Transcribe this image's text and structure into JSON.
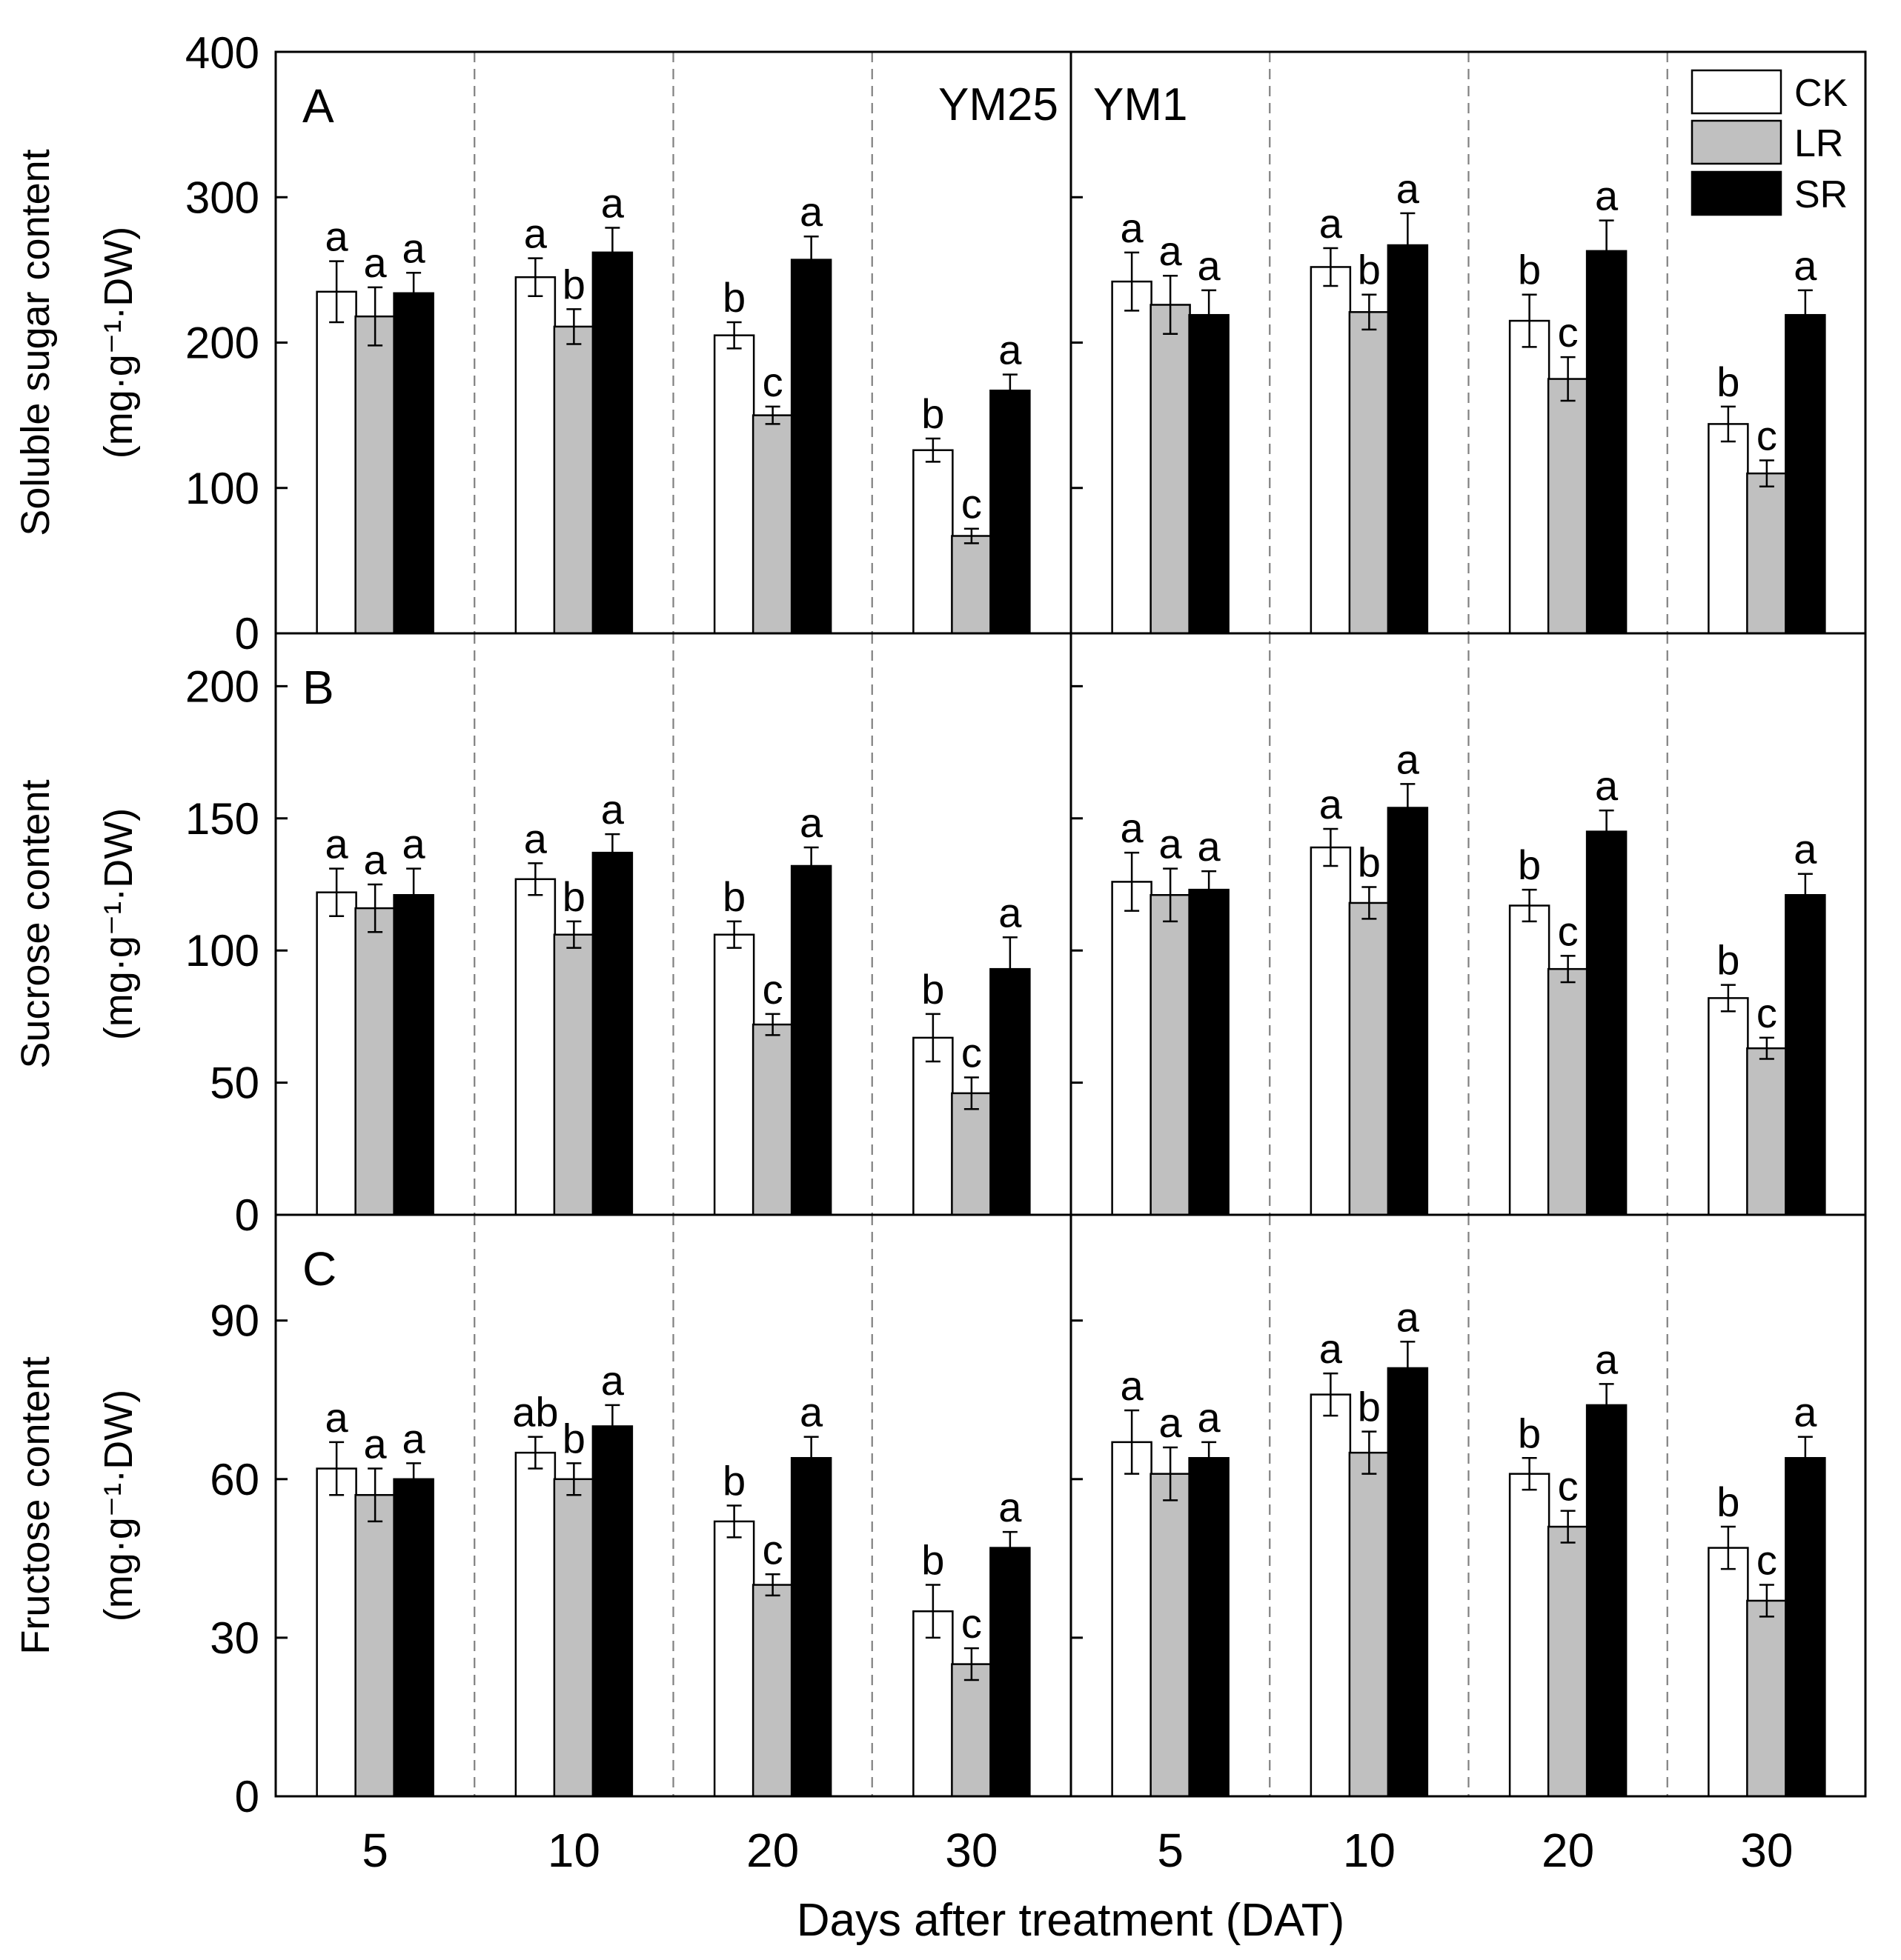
{
  "colors": {
    "CK": "#ffffff",
    "LR": "#c0c0c0",
    "SR": "#000000",
    "axis": "#000000",
    "divider": "#808080"
  },
  "chart_data": {
    "type": "bar",
    "x_label": "Days after treatment (DAT)",
    "categories": [
      "5",
      "10",
      "20",
      "30"
    ],
    "cultivars": [
      "YM25",
      "YM1"
    ],
    "legend": [
      "CK",
      "LR",
      "SR"
    ],
    "legend_position": "top-right",
    "error_bars": true,
    "panels": [
      {
        "letter": "A",
        "ylabel_line1": "Soluble sugar content",
        "ylabel_line2": "(mg·g⁻¹·DW)",
        "ylim": [
          0,
          400
        ],
        "yticks": [
          "0",
          "100",
          "200",
          "300",
          "400"
        ],
        "groups": [
          {
            "cultivar": "YM25",
            "dat": "5",
            "values": [
              235,
              218,
              234
            ],
            "errors": [
              21,
              20,
              14
            ],
            "letters": [
              "a",
              "a",
              "a"
            ]
          },
          {
            "cultivar": "YM25",
            "dat": "10",
            "values": [
              245,
              211,
              262
            ],
            "errors": [
              13,
              12,
              17
            ],
            "letters": [
              "a",
              "b",
              "a"
            ]
          },
          {
            "cultivar": "YM25",
            "dat": "20",
            "values": [
              205,
              150,
              257
            ],
            "errors": [
              9,
              6,
              16
            ],
            "letters": [
              "b",
              "c",
              "a"
            ]
          },
          {
            "cultivar": "YM25",
            "dat": "30",
            "values": [
              126,
              67,
              167
            ],
            "errors": [
              8,
              5,
              11
            ],
            "letters": [
              "b",
              "c",
              "a"
            ]
          },
          {
            "cultivar": "YM1",
            "dat": "5",
            "values": [
              242,
              226,
              219
            ],
            "errors": [
              20,
              20,
              17
            ],
            "letters": [
              "a",
              "a",
              "a"
            ]
          },
          {
            "cultivar": "YM1",
            "dat": "10",
            "values": [
              252,
              221,
              267
            ],
            "errors": [
              13,
              12,
              22
            ],
            "letters": [
              "a",
              "b",
              "a"
            ]
          },
          {
            "cultivar": "YM1",
            "dat": "20",
            "values": [
              215,
              175,
              263
            ],
            "errors": [
              18,
              15,
              21
            ],
            "letters": [
              "b",
              "c",
              "a"
            ]
          },
          {
            "cultivar": "YM1",
            "dat": "30",
            "values": [
              144,
              110,
              219
            ],
            "errors": [
              12,
              9,
              17
            ],
            "letters": [
              "b",
              "c",
              "a"
            ]
          }
        ]
      },
      {
        "letter": "B",
        "ylabel_line1": "Sucrose content",
        "ylabel_line2": "(mg·g⁻¹·DW)",
        "ylim": [
          0,
          220
        ],
        "yticks": [
          "0",
          "50",
          "100",
          "150",
          "200"
        ],
        "groups": [
          {
            "cultivar": "YM25",
            "dat": "5",
            "values": [
              122,
              116,
              121
            ],
            "errors": [
              9,
              9,
              10
            ],
            "letters": [
              "a",
              "a",
              "a"
            ]
          },
          {
            "cultivar": "YM25",
            "dat": "10",
            "values": [
              127,
              106,
              137
            ],
            "errors": [
              6,
              5,
              7
            ],
            "letters": [
              "a",
              "b",
              "a"
            ]
          },
          {
            "cultivar": "YM25",
            "dat": "20",
            "values": [
              106,
              72,
              132
            ],
            "errors": [
              5,
              4,
              7
            ],
            "letters": [
              "b",
              "c",
              "a"
            ]
          },
          {
            "cultivar": "YM25",
            "dat": "30",
            "values": [
              67,
              46,
              93
            ],
            "errors": [
              9,
              6,
              12
            ],
            "letters": [
              "b",
              "c",
              "a"
            ]
          },
          {
            "cultivar": "YM1",
            "dat": "5",
            "values": [
              126,
              121,
              123
            ],
            "errors": [
              11,
              10,
              7
            ],
            "letters": [
              "a",
              "a",
              "a"
            ]
          },
          {
            "cultivar": "YM1",
            "dat": "10",
            "values": [
              139,
              118,
              154
            ],
            "errors": [
              7,
              6,
              9
            ],
            "letters": [
              "a",
              "b",
              "a"
            ]
          },
          {
            "cultivar": "YM1",
            "dat": "20",
            "values": [
              117,
              93,
              145
            ],
            "errors": [
              6,
              5,
              8
            ],
            "letters": [
              "b",
              "c",
              "a"
            ]
          },
          {
            "cultivar": "YM1",
            "dat": "30",
            "values": [
              82,
              63,
              121
            ],
            "errors": [
              5,
              4,
              8
            ],
            "letters": [
              "b",
              "c",
              "a"
            ]
          }
        ]
      },
      {
        "letter": "C",
        "ylabel_line1": "Fructose  content",
        "ylabel_line2": "(mg·g⁻¹·DW)",
        "ylim": [
          0,
          110
        ],
        "yticks": [
          "0",
          "30",
          "60",
          "90"
        ],
        "groups": [
          {
            "cultivar": "YM25",
            "dat": "5",
            "values": [
              62,
              57,
              60
            ],
            "errors": [
              5,
              5,
              3
            ],
            "letters": [
              "a",
              "a",
              "a"
            ]
          },
          {
            "cultivar": "YM25",
            "dat": "10",
            "values": [
              65,
              60,
              70
            ],
            "errors": [
              3,
              3,
              4
            ],
            "letters": [
              "ab",
              "b",
              "a"
            ]
          },
          {
            "cultivar": "YM25",
            "dat": "20",
            "values": [
              52,
              40,
              64
            ],
            "errors": [
              3,
              2,
              4
            ],
            "letters": [
              "b",
              "c",
              "a"
            ]
          },
          {
            "cultivar": "YM25",
            "dat": "30",
            "values": [
              35,
              25,
              47
            ],
            "errors": [
              5,
              3,
              3
            ],
            "letters": [
              "b",
              "c",
              "a"
            ]
          },
          {
            "cultivar": "YM1",
            "dat": "5",
            "values": [
              67,
              61,
              64
            ],
            "errors": [
              6,
              5,
              3
            ],
            "letters": [
              "a",
              "a",
              "a"
            ]
          },
          {
            "cultivar": "YM1",
            "dat": "10",
            "values": [
              76,
              65,
              81
            ],
            "errors": [
              4,
              4,
              5
            ],
            "letters": [
              "a",
              "b",
              "a"
            ]
          },
          {
            "cultivar": "YM1",
            "dat": "20",
            "values": [
              61,
              51,
              74
            ],
            "errors": [
              3,
              3,
              4
            ],
            "letters": [
              "b",
              "c",
              "a"
            ]
          },
          {
            "cultivar": "YM1",
            "dat": "30",
            "values": [
              47,
              37,
              64
            ],
            "errors": [
              4,
              3,
              4
            ],
            "letters": [
              "b",
              "c",
              "a"
            ]
          }
        ]
      }
    ]
  }
}
